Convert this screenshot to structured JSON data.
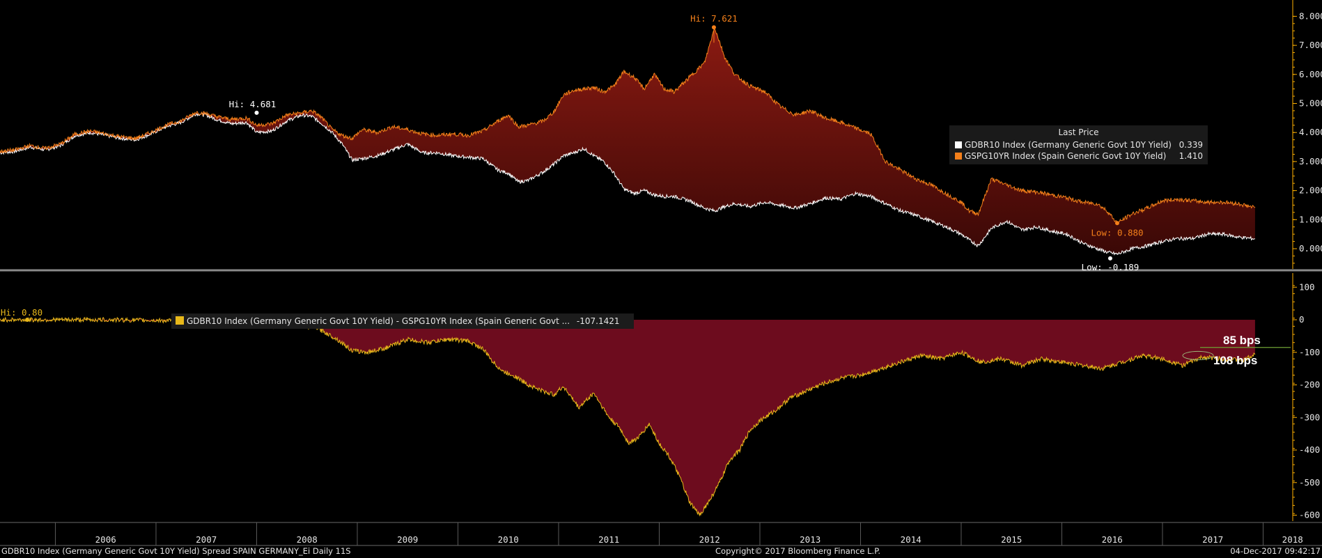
{
  "chart_data": [
    {
      "type": "area",
      "panel": "upper",
      "ylim": [
        -0.5,
        8.5
      ],
      "yticks": [
        "8.000",
        "7.000",
        "6.000",
        "5.000",
        "4.000",
        "3.000",
        "2.000",
        "1.000",
        "0.000"
      ],
      "ytick_values": [
        8,
        7,
        6,
        5,
        4,
        3,
        2,
        1,
        0
      ],
      "xlim": [
        2005.45,
        2018.3
      ],
      "fill_between_series": true,
      "series": [
        {
          "name": "GDBR10 Index (Germany Generic Govt 10Y Yield)",
          "color": "#ffffff",
          "last": "0.339",
          "x": [
            2005.45,
            2005.6,
            2005.75,
            2005.9,
            2006.05,
            2006.2,
            2006.35,
            2006.5,
            2006.65,
            2006.8,
            2006.95,
            2007.1,
            2007.25,
            2007.4,
            2007.5,
            2007.6,
            2007.75,
            2007.9,
            2008.0,
            2008.15,
            2008.3,
            2008.45,
            2008.55,
            2008.65,
            2008.75,
            2008.85,
            2008.95,
            2009.05,
            2009.2,
            2009.35,
            2009.5,
            2009.65,
            2009.8,
            2009.95,
            2010.1,
            2010.25,
            2010.4,
            2010.5,
            2010.6,
            2010.7,
            2010.85,
            2010.95,
            2011.05,
            2011.15,
            2011.25,
            2011.35,
            2011.45,
            2011.55,
            2011.65,
            2011.75,
            2011.85,
            2011.95,
            2012.05,
            2012.15,
            2012.3,
            2012.45,
            2012.55,
            2012.65,
            2012.75,
            2012.9,
            2013.05,
            2013.2,
            2013.35,
            2013.5,
            2013.65,
            2013.8,
            2013.95,
            2014.1,
            2014.25,
            2014.4,
            2014.55,
            2014.7,
            2014.85,
            2015.0,
            2015.08,
            2015.17,
            2015.3,
            2015.45,
            2015.6,
            2015.75,
            2015.9,
            2016.05,
            2016.2,
            2016.35,
            2016.45,
            2016.55,
            2016.7,
            2016.85,
            2017.0,
            2017.15,
            2017.3,
            2017.45,
            2017.6,
            2017.75,
            2017.92
          ],
          "values": [
            3.3,
            3.35,
            3.5,
            3.4,
            3.55,
            3.9,
            4.0,
            3.9,
            3.8,
            3.75,
            3.95,
            4.2,
            4.35,
            4.65,
            4.6,
            4.45,
            4.3,
            4.35,
            4.0,
            4.05,
            4.4,
            4.6,
            4.55,
            4.3,
            4.0,
            3.6,
            3.05,
            3.1,
            3.2,
            3.4,
            3.6,
            3.3,
            3.3,
            3.2,
            3.15,
            3.1,
            2.7,
            2.6,
            2.3,
            2.35,
            2.65,
            2.9,
            3.2,
            3.3,
            3.45,
            3.2,
            3.0,
            2.6,
            2.05,
            1.9,
            2.0,
            1.85,
            1.8,
            1.8,
            1.65,
            1.4,
            1.3,
            1.45,
            1.55,
            1.45,
            1.6,
            1.5,
            1.4,
            1.55,
            1.75,
            1.7,
            1.9,
            1.8,
            1.55,
            1.3,
            1.15,
            0.95,
            0.75,
            0.5,
            0.3,
            0.1,
            0.7,
            0.95,
            0.65,
            0.75,
            0.6,
            0.5,
            0.2,
            0.0,
            -0.12,
            -0.19,
            0.0,
            0.1,
            0.25,
            0.35,
            0.35,
            0.5,
            0.5,
            0.4,
            0.34
          ]
        },
        {
          "name": "GSPG10YR Index (Spain Generic Govt 10Y Yield)",
          "color": "#f5801a",
          "last": "1.410",
          "x": [
            2005.45,
            2005.6,
            2005.75,
            2005.9,
            2006.05,
            2006.2,
            2006.35,
            2006.5,
            2006.65,
            2006.8,
            2006.95,
            2007.1,
            2007.25,
            2007.4,
            2007.5,
            2007.6,
            2007.75,
            2007.9,
            2008.0,
            2008.15,
            2008.3,
            2008.45,
            2008.55,
            2008.65,
            2008.75,
            2008.85,
            2008.95,
            2009.05,
            2009.2,
            2009.35,
            2009.5,
            2009.65,
            2009.8,
            2009.95,
            2010.1,
            2010.25,
            2010.4,
            2010.5,
            2010.6,
            2010.7,
            2010.85,
            2010.95,
            2011.05,
            2011.15,
            2011.25,
            2011.35,
            2011.45,
            2011.55,
            2011.65,
            2011.75,
            2011.85,
            2011.95,
            2012.05,
            2012.15,
            2012.3,
            2012.45,
            2012.55,
            2012.65,
            2012.75,
            2012.9,
            2013.05,
            2013.2,
            2013.35,
            2013.5,
            2013.65,
            2013.8,
            2013.95,
            2014.1,
            2014.25,
            2014.4,
            2014.55,
            2014.7,
            2014.85,
            2015.0,
            2015.08,
            2015.17,
            2015.3,
            2015.45,
            2015.6,
            2015.75,
            2015.9,
            2016.05,
            2016.2,
            2016.35,
            2016.45,
            2016.55,
            2016.7,
            2016.85,
            2017.0,
            2017.15,
            2017.3,
            2017.45,
            2017.6,
            2017.75,
            2017.92
          ],
          "values": [
            3.35,
            3.4,
            3.55,
            3.45,
            3.6,
            3.95,
            4.05,
            3.95,
            3.85,
            3.8,
            4.0,
            4.25,
            4.4,
            4.7,
            4.65,
            4.55,
            4.45,
            4.5,
            4.25,
            4.3,
            4.6,
            4.68,
            4.75,
            4.5,
            4.1,
            3.9,
            3.8,
            4.1,
            4.0,
            4.2,
            4.1,
            3.95,
            3.9,
            3.95,
            3.9,
            4.05,
            4.4,
            4.6,
            4.2,
            4.25,
            4.4,
            4.7,
            5.3,
            5.45,
            5.5,
            5.55,
            5.4,
            5.6,
            6.1,
            5.9,
            5.5,
            6.0,
            5.5,
            5.4,
            5.9,
            6.4,
            7.62,
            6.6,
            6.0,
            5.6,
            5.4,
            4.9,
            4.6,
            4.75,
            4.5,
            4.35,
            4.15,
            3.95,
            3.0,
            2.7,
            2.4,
            2.2,
            1.9,
            1.6,
            1.3,
            1.2,
            2.4,
            2.2,
            2.0,
            1.95,
            1.85,
            1.75,
            1.6,
            1.55,
            1.3,
            0.88,
            1.2,
            1.4,
            1.65,
            1.7,
            1.65,
            1.6,
            1.6,
            1.55,
            1.41
          ]
        }
      ],
      "annotations": [
        {
          "text": "Hi: 4.681",
          "x": 2008.0,
          "y": 4.68,
          "color": "#ffffff"
        },
        {
          "text": "Hi: 7.621",
          "x": 2012.55,
          "y": 7.62,
          "color": "#f5801a"
        },
        {
          "text": "Low: 0.880",
          "x": 2016.55,
          "y": 0.88,
          "color": "#f5801a"
        },
        {
          "text": "Low: -0.189",
          "x": 2016.55,
          "y": -0.19,
          "color": "#ffffff"
        }
      ],
      "legend": {
        "title": "Last Price",
        "placement": "right"
      }
    },
    {
      "type": "area",
      "panel": "lower",
      "ylim": [
        -620,
        120
      ],
      "yticks": [
        "100",
        "0",
        "-100",
        "-200",
        "-300",
        "-400",
        "-500",
        "-600"
      ],
      "ytick_values": [
        100,
        0,
        -100,
        -200,
        -300,
        -400,
        -500,
        -600
      ],
      "xlim": [
        2005.45,
        2018.3
      ],
      "series": [
        {
          "name": "GDBR10 Index (Germany Generic Govt 10Y Yield) - GSPG10YR Index (Spain Generic Govt ...",
          "color": "#e8b81a",
          "fill": "#6d0c1e",
          "last": "-107.1421",
          "x": [
            2005.45,
            2006.0,
            2006.5,
            2007.0,
            2007.3,
            2007.6,
            2007.9,
            2008.15,
            2008.4,
            2008.6,
            2008.8,
            2008.95,
            2009.1,
            2009.3,
            2009.5,
            2009.7,
            2009.9,
            2010.1,
            2010.25,
            2010.35,
            2010.45,
            2010.55,
            2010.7,
            2010.85,
            2010.95,
            2011.05,
            2011.2,
            2011.35,
            2011.5,
            2011.6,
            2011.7,
            2011.8,
            2011.9,
            2012.0,
            2012.1,
            2012.2,
            2012.3,
            2012.4,
            2012.5,
            2012.6,
            2012.7,
            2012.8,
            2012.9,
            2013.0,
            2013.15,
            2013.3,
            2013.45,
            2013.6,
            2013.8,
            2014.0,
            2014.2,
            2014.4,
            2014.6,
            2014.8,
            2015.0,
            2015.2,
            2015.4,
            2015.6,
            2015.8,
            2016.0,
            2016.2,
            2016.4,
            2016.6,
            2016.8,
            2017.0,
            2017.2,
            2017.4,
            2017.6,
            2017.8,
            2017.92
          ],
          "values": [
            0,
            0,
            0,
            -2,
            -5,
            -5,
            -15,
            -20,
            -18,
            -25,
            -60,
            -95,
            -100,
            -85,
            -60,
            -70,
            -60,
            -65,
            -90,
            -130,
            -160,
            -170,
            -200,
            -220,
            -230,
            -205,
            -270,
            -225,
            -300,
            -330,
            -380,
            -360,
            -320,
            -380,
            -420,
            -480,
            -560,
            -600,
            -555,
            -500,
            -430,
            -400,
            -340,
            -310,
            -280,
            -240,
            -220,
            -200,
            -180,
            -170,
            -150,
            -130,
            -110,
            -120,
            -100,
            -130,
            -120,
            -140,
            -120,
            -130,
            -140,
            -150,
            -130,
            -110,
            -120,
            -140,
            -115,
            -120,
            -125,
            -107
          ]
        }
      ],
      "annotations": [
        {
          "text": "Hi: 0.80",
          "x": 2006.0,
          "y": 0.8,
          "color": "#e8b81a"
        },
        {
          "text": "85 bps",
          "color": "#ffffff"
        },
        {
          "text": "108 bps",
          "color": "#ffffff"
        }
      ],
      "reference_line": {
        "y": -85,
        "color": "#6fa234"
      }
    }
  ],
  "x_axis": {
    "years": [
      "2006",
      "2007",
      "2008",
      "2009",
      "2010",
      "2011",
      "2012",
      "2013",
      "2014",
      "2015",
      "2016",
      "2017",
      "2018"
    ]
  },
  "legend_upper": {
    "title": "Last Price",
    "rows": [
      {
        "label": "GDBR10 Index (Germany Generic Govt 10Y Yield)",
        "value": "0.339",
        "color": "#ffffff"
      },
      {
        "label": "GSPG10YR Index (Spain Generic Govt 10Y Yield)",
        "value": "1.410",
        "color": "#f5801a"
      }
    ]
  },
  "legend_lower": {
    "label": "GDBR10 Index (Germany Generic Govt 10Y Yield) - GSPG10YR Index (Spain Generic Govt ...",
    "value": "-107.1421",
    "color": "#e8b81a"
  },
  "callouts": {
    "bps_85": "85 bps",
    "bps_108": "108 bps"
  },
  "footer": {
    "left": "GDBR10 Index (Germany Generic Govt 10Y Yield) Spread SPAIN GERMANY_Ei  Daily 11S",
    "center": "Copyright© 2017 Bloomberg Finance L.P.",
    "right": "04-Dec-2017 09:42:17"
  },
  "colors": {
    "background": "#000000",
    "spread_fill": "#6d0c1e",
    "upper_fill_top": "#8a1a12",
    "upper_fill_bottom": "#3a0806",
    "axis": "#ffb000"
  }
}
